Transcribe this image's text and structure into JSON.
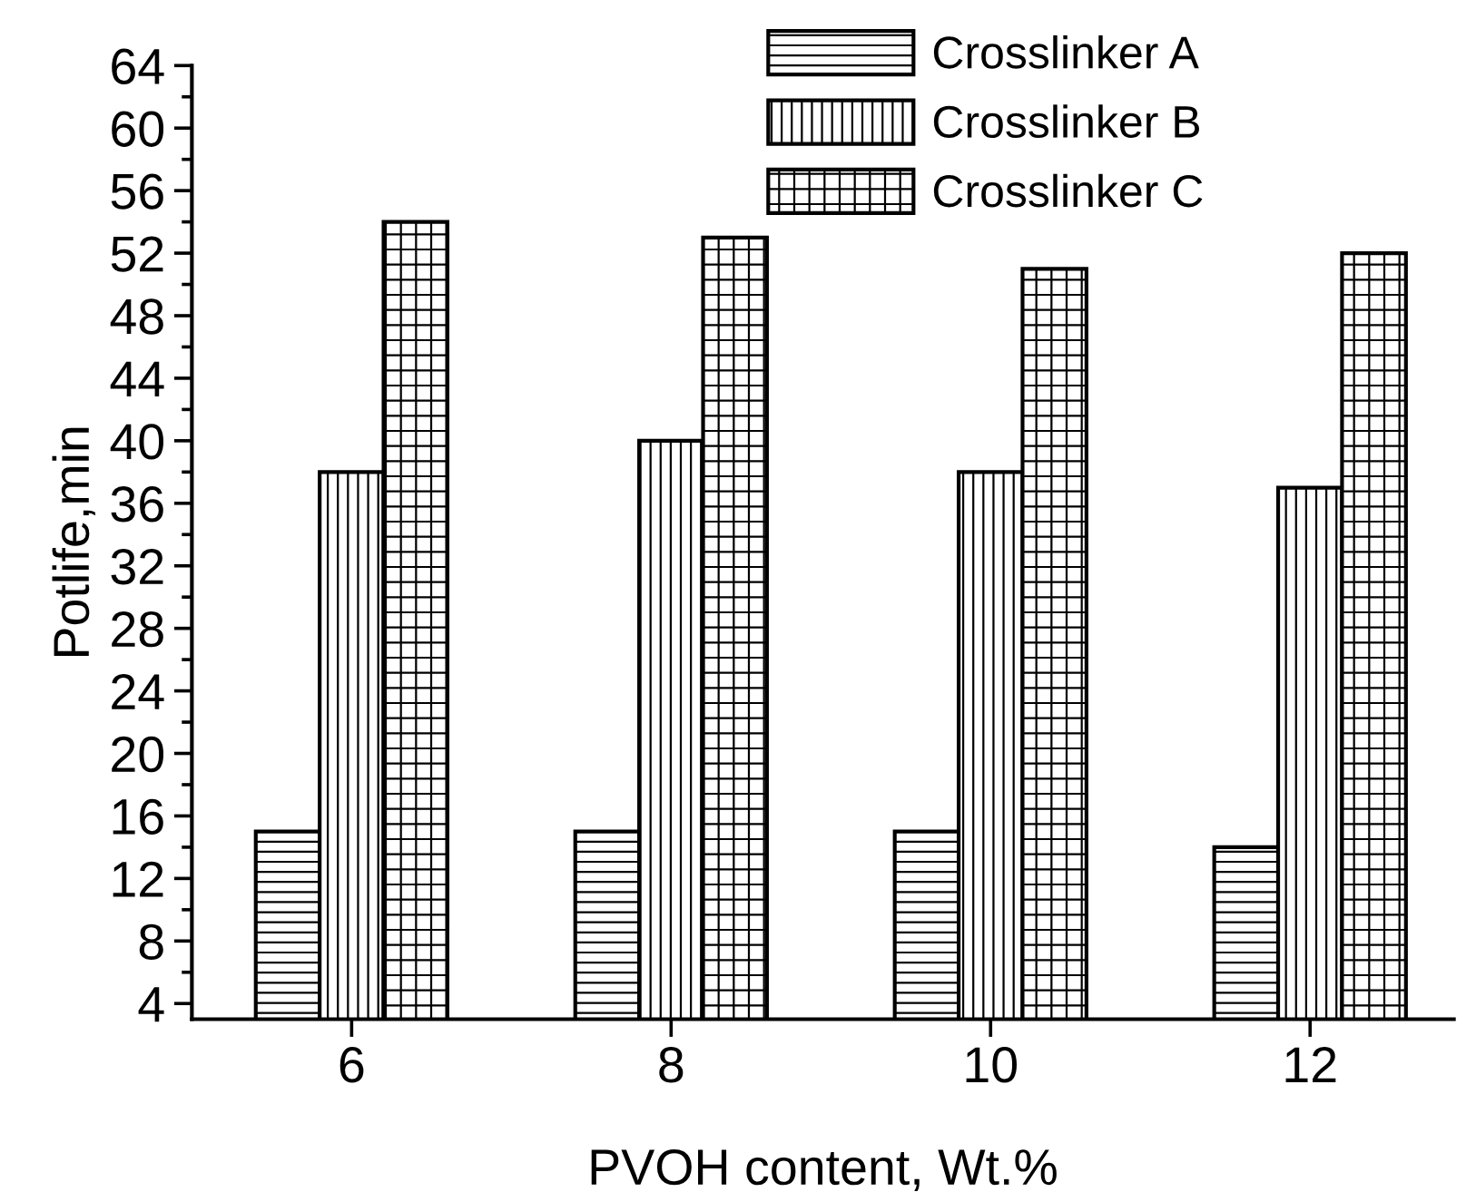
{
  "chart_data": {
    "type": "bar",
    "xlabel": "PVOH content, Wt.%",
    "ylabel": "Potlife,min",
    "categories": [
      "6",
      "8",
      "10",
      "12"
    ],
    "series": [
      {
        "name": "Crosslinker A",
        "color": "#000000",
        "values": [
          15,
          15,
          15,
          14
        ]
      },
      {
        "name": "Crosslinker B",
        "color": "#000000",
        "values": [
          38,
          40,
          38,
          37
        ]
      },
      {
        "name": "Crosslinker C",
        "color": "#000000",
        "values": [
          54,
          53,
          51,
          52
        ]
      }
    ],
    "ylim": [
      3,
      64
    ],
    "yticks": [
      4,
      8,
      12,
      16,
      20,
      24,
      28,
      32,
      36,
      40,
      44,
      48,
      52,
      56,
      60,
      64
    ],
    "grid": false,
    "legend": "top right"
  }
}
